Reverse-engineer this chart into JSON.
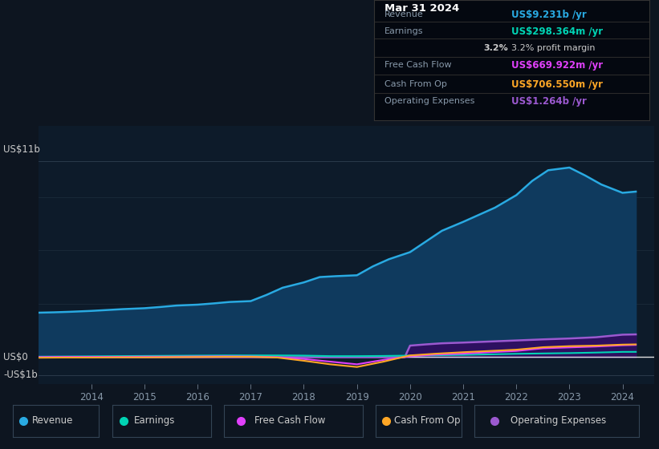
{
  "background_color": "#0d1520",
  "plot_bg_color": "#0d1b2a",
  "y_label_top": "US$11b",
  "y_label_mid": "US$0",
  "y_label_bot": "-US$1b",
  "x_ticks": [
    2014,
    2015,
    2016,
    2017,
    2018,
    2019,
    2020,
    2021,
    2022,
    2023,
    2024
  ],
  "ylim": [
    -1.5,
    13.0
  ],
  "xlim": [
    2013.0,
    2024.6
  ],
  "revenue_color": "#29aae2",
  "revenue_fill": "#0f3a5e",
  "earnings_color": "#00d4b4",
  "fcf_color": "#e040fb",
  "cashfromop_color": "#ffa726",
  "opex_color": "#9b59d0",
  "opex_fill": "#2d1060",
  "tooltip_bg": "#040810",
  "tooltip_title": "Mar 31 2024",
  "tooltip_revenue_label": "Revenue",
  "tooltip_revenue_value": "US$9.231b /yr",
  "tooltip_revenue_color": "#29aae2",
  "tooltip_earnings_label": "Earnings",
  "tooltip_earnings_value": "US$298.364m /yr",
  "tooltip_earnings_color": "#00d4b4",
  "tooltip_margin_value": "3.2% profit margin",
  "tooltip_fcf_label": "Free Cash Flow",
  "tooltip_fcf_value": "US$669.922m /yr",
  "tooltip_fcf_color": "#e040fb",
  "tooltip_cashop_label": "Cash From Op",
  "tooltip_cashop_value": "US$706.550m /yr",
  "tooltip_cashop_color": "#ffa726",
  "tooltip_opex_label": "Operating Expenses",
  "tooltip_opex_value": "US$1.264b /yr",
  "tooltip_opex_color": "#9b59d0",
  "legend_items": [
    {
      "label": "Revenue",
      "color": "#29aae2"
    },
    {
      "label": "Earnings",
      "color": "#00d4b4"
    },
    {
      "label": "Free Cash Flow",
      "color": "#e040fb"
    },
    {
      "label": "Cash From Op",
      "color": "#ffa726"
    },
    {
      "label": "Operating Expenses",
      "color": "#9b59d0"
    }
  ],
  "revenue_years": [
    2013.0,
    2013.3,
    2013.6,
    2014.0,
    2014.3,
    2014.6,
    2015.0,
    2015.3,
    2015.6,
    2016.0,
    2016.3,
    2016.6,
    2017.0,
    2017.3,
    2017.6,
    2018.0,
    2018.3,
    2018.6,
    2019.0,
    2019.3,
    2019.6,
    2020.0,
    2020.3,
    2020.6,
    2021.0,
    2021.3,
    2021.6,
    2022.0,
    2022.3,
    2022.6,
    2023.0,
    2023.3,
    2023.6,
    2024.0,
    2024.25
  ],
  "revenue_values": [
    2.5,
    2.52,
    2.55,
    2.6,
    2.65,
    2.7,
    2.75,
    2.82,
    2.9,
    2.95,
    3.02,
    3.1,
    3.15,
    3.5,
    3.9,
    4.2,
    4.5,
    4.55,
    4.6,
    5.1,
    5.5,
    5.9,
    6.5,
    7.1,
    7.6,
    8.0,
    8.4,
    9.1,
    9.9,
    10.5,
    10.65,
    10.2,
    9.7,
    9.231,
    9.3
  ],
  "earnings_years": [
    2013.0,
    2013.5,
    2014.0,
    2014.5,
    2015.0,
    2015.5,
    2016.0,
    2016.5,
    2017.0,
    2017.5,
    2018.0,
    2018.5,
    2019.0,
    2019.5,
    2020.0,
    2020.5,
    2021.0,
    2021.5,
    2022.0,
    2022.5,
    2023.0,
    2023.5,
    2024.0,
    2024.25
  ],
  "earnings_values": [
    0.03,
    0.04,
    0.05,
    0.06,
    0.07,
    0.08,
    0.09,
    0.1,
    0.1,
    0.1,
    0.09,
    0.06,
    0.06,
    0.07,
    0.09,
    0.11,
    0.13,
    0.16,
    0.19,
    0.21,
    0.23,
    0.26,
    0.298,
    0.3
  ],
  "fcf_years": [
    2013.0,
    2013.5,
    2014.0,
    2014.5,
    2015.0,
    2015.5,
    2016.0,
    2016.5,
    2017.0,
    2017.5,
    2018.0,
    2018.5,
    2019.0,
    2019.5,
    2020.0,
    2020.5,
    2021.0,
    2021.5,
    2022.0,
    2022.5,
    2023.0,
    2023.5,
    2024.0,
    2024.25
  ],
  "fcf_values": [
    0.01,
    0.02,
    0.02,
    0.02,
    0.03,
    0.03,
    0.04,
    0.05,
    0.04,
    0.0,
    -0.1,
    -0.25,
    -0.4,
    -0.15,
    0.05,
    0.15,
    0.2,
    0.28,
    0.35,
    0.5,
    0.55,
    0.6,
    0.67,
    0.69
  ],
  "cashop_years": [
    2013.0,
    2013.5,
    2014.0,
    2014.5,
    2015.0,
    2015.5,
    2016.0,
    2016.5,
    2017.0,
    2017.5,
    2018.0,
    2018.5,
    2019.0,
    2019.5,
    2020.0,
    2020.5,
    2021.0,
    2021.5,
    2022.0,
    2022.5,
    2023.0,
    2023.5,
    2024.0,
    2024.25
  ],
  "cashop_values": [
    -0.03,
    -0.02,
    -0.02,
    -0.01,
    -0.01,
    0.0,
    0.01,
    0.02,
    0.02,
    -0.02,
    -0.2,
    -0.4,
    -0.55,
    -0.25,
    0.1,
    0.2,
    0.28,
    0.35,
    0.42,
    0.56,
    0.62,
    0.65,
    0.706,
    0.72
  ],
  "opex_years": [
    2013.0,
    2019.8,
    2019.9,
    2020.0,
    2020.3,
    2020.6,
    2021.0,
    2021.5,
    2022.0,
    2022.5,
    2023.0,
    2023.5,
    2024.0,
    2024.25
  ],
  "opex_values": [
    0.0,
    0.0,
    0.0,
    0.65,
    0.72,
    0.78,
    0.82,
    0.88,
    0.94,
    1.0,
    1.05,
    1.12,
    1.264,
    1.28
  ]
}
